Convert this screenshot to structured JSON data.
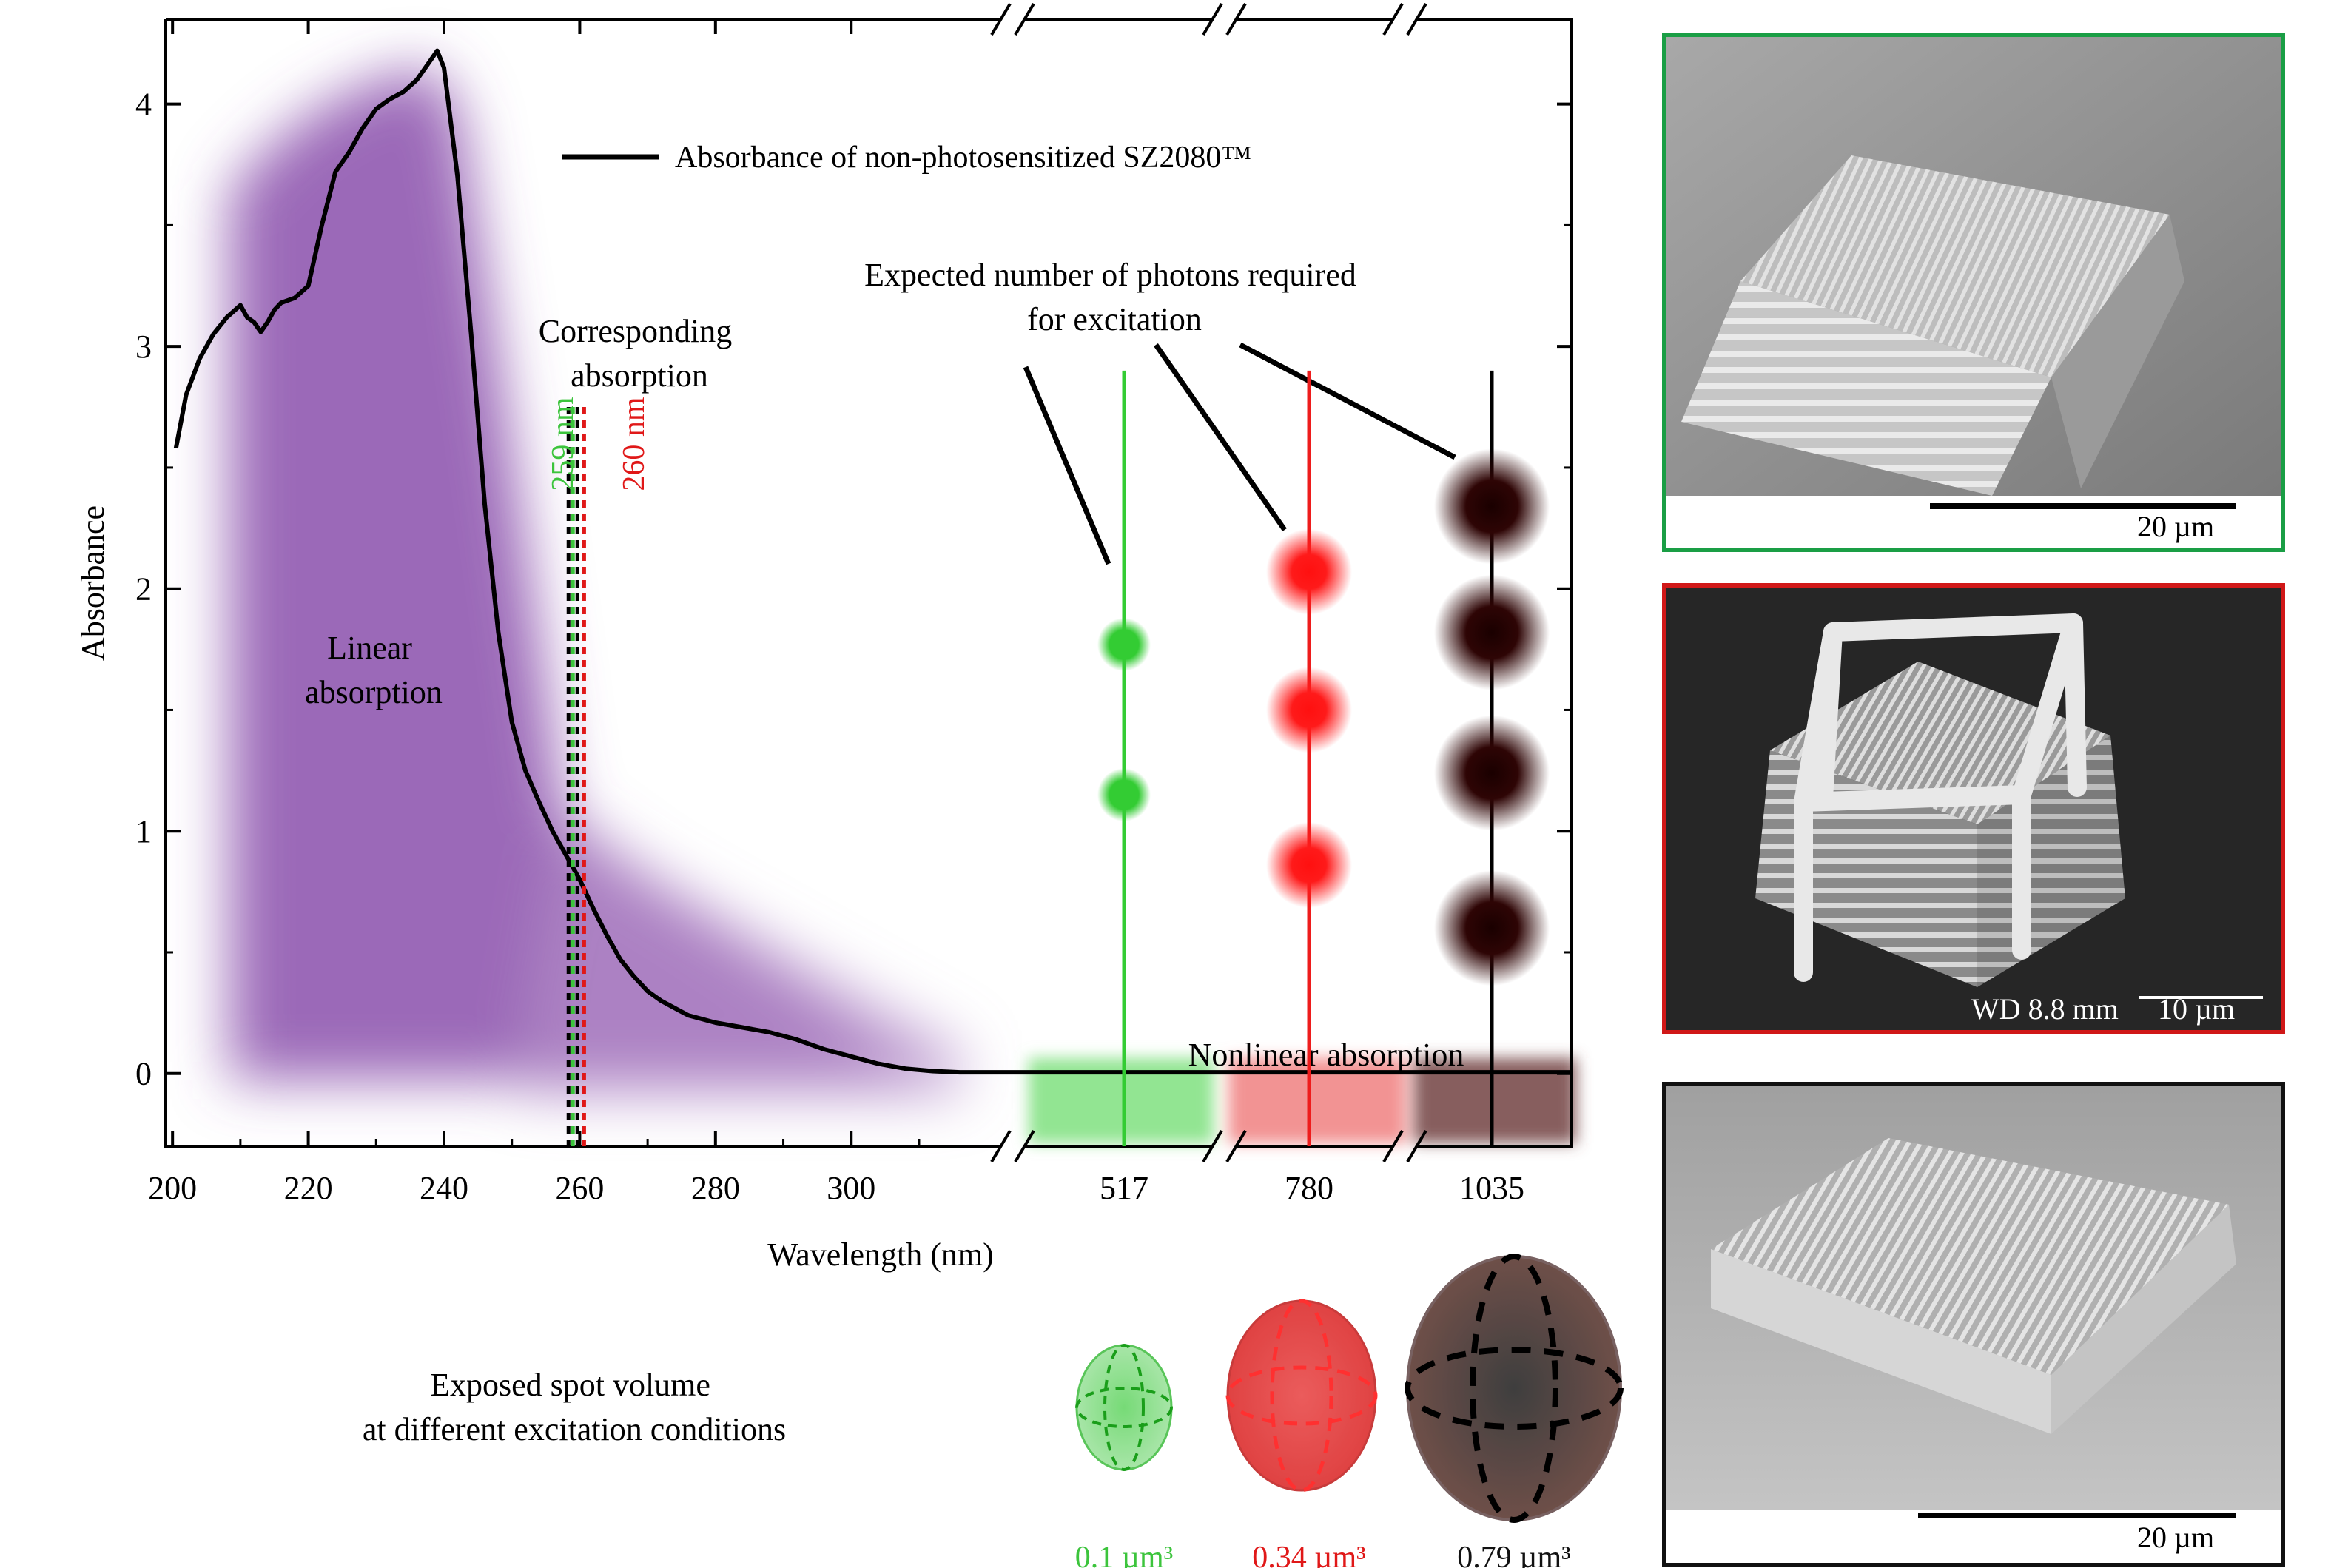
{
  "chart_data": {
    "type": "line",
    "legend": "Absorbance of non-photosensitized SZ2080™",
    "xlabel": "Wavelength (nm)",
    "ylabel": "Absorbance",
    "x_ticks": [
      "200",
      "220",
      "240",
      "260",
      "280",
      "300"
    ],
    "x_ticks_broken": [
      "517",
      "780",
      "1035"
    ],
    "y_ticks": [
      "0",
      "1",
      "2",
      "3",
      "4"
    ],
    "xlim": [
      199,
      322
    ],
    "ylim": [
      -0.3,
      4.35
    ],
    "series": [
      {
        "name": "Absorbance of non-photosensitized SZ2080™",
        "x": [
          200.5,
          202,
          204,
          206,
          208,
          210,
          211,
          212,
          213,
          214,
          215,
          216,
          218,
          220,
          222,
          224,
          226,
          228,
          230,
          232,
          234,
          236,
          238,
          239,
          240,
          242,
          244,
          246,
          248,
          250,
          252,
          254,
          256,
          258,
          260,
          262,
          264,
          266,
          268,
          270,
          272,
          274,
          276,
          280,
          284,
          288,
          292,
          296,
          300,
          304,
          308,
          312,
          316,
          322
        ],
        "y": [
          2.58,
          2.8,
          2.95,
          3.05,
          3.12,
          3.17,
          3.12,
          3.1,
          3.06,
          3.1,
          3.15,
          3.18,
          3.2,
          3.25,
          3.5,
          3.72,
          3.8,
          3.9,
          3.98,
          4.02,
          4.05,
          4.1,
          4.18,
          4.22,
          4.15,
          3.7,
          3.05,
          2.35,
          1.82,
          1.45,
          1.25,
          1.12,
          1.0,
          0.9,
          0.8,
          0.68,
          0.57,
          0.47,
          0.4,
          0.34,
          0.3,
          0.27,
          0.24,
          0.21,
          0.19,
          0.17,
          0.14,
          0.1,
          0.07,
          0.04,
          0.02,
          0.01,
          0.005,
          0.005
        ]
      }
    ],
    "dashed_lines": [
      {
        "label": "259 nm",
        "x": 259,
        "color": "#3cc43c"
      },
      {
        "label": "260 nm",
        "x": 260,
        "color": "#e01818"
      }
    ],
    "annotations": {
      "linear": [
        "Linear",
        "absorption"
      ],
      "corresponding": [
        "Corresponding",
        "absorption"
      ],
      "photons": [
        "Expected number of photons required",
        "for excitation"
      ],
      "nonlinear": "Nonlinear absorption",
      "spot": [
        "Exposed spot volume",
        "at different excitation conditions"
      ]
    },
    "excitation": [
      {
        "wavelength": 517,
        "photons": 2,
        "color": "#33cc33",
        "volume_label": "0.1 µm³"
      },
      {
        "wavelength": 780,
        "photons": 3,
        "color": "#ee1c1c",
        "volume_label": "0.34 µm³"
      },
      {
        "wavelength": 1035,
        "photons": 4,
        "color": "#2b0000",
        "volume_label": "0.79 µm³"
      }
    ]
  },
  "sem_panels": [
    {
      "frame_color": "#1a9e45",
      "scale_label": "20 µm",
      "label_extra": ""
    },
    {
      "frame_color": "#d01818",
      "scale_label": "10 µm",
      "label_extra": "WD 8.8 mm"
    },
    {
      "frame_color": "#111111",
      "scale_label": "20 µm",
      "label_extra": ""
    }
  ]
}
